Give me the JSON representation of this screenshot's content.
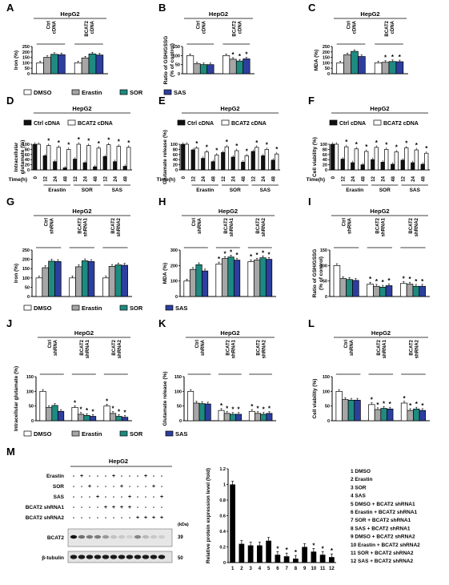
{
  "colors": {
    "dmso": "#ffffff",
    "erastin": "#a6a6a6",
    "sor": "#1e8a80",
    "sas": "#2d3f9e",
    "ctrl_cdna": "#111111",
    "bcat2_cdna": "#ffffff"
  },
  "legend_treatments": [
    "DMSO",
    "Erastin",
    "SOR",
    "SAS"
  ],
  "legend_cdna": [
    "Ctrl cDNA",
    "BCAT2 cDNA"
  ],
  "time_labels": [
    "0",
    "12",
    "24",
    "48",
    "12",
    "24",
    "48",
    "12",
    "24",
    "48"
  ],
  "time_axis_label": "Time(h)",
  "drug_group_labels": [
    "Erastin",
    "SOR",
    "SAS"
  ],
  "cell_line": "HepG2",
  "chart_data": [
    {
      "panel": "A",
      "type": "bar",
      "title": "HepG2",
      "ylabel": "Iron (%)",
      "ylim": [
        0,
        250
      ],
      "yticks": [
        0,
        50,
        100,
        150,
        200,
        250
      ],
      "groups": [
        "Ctrl cDNA",
        "BCAT2 cDNA"
      ],
      "series": [
        {
          "name": "DMSO",
          "values": [
            100,
            100
          ]
        },
        {
          "name": "Erastin",
          "values": [
            150,
            145
          ]
        },
        {
          "name": "SOR",
          "values": [
            178,
            182
          ]
        },
        {
          "name": "SAS",
          "values": [
            175,
            172
          ]
        }
      ]
    },
    {
      "panel": "B",
      "type": "bar",
      "title": "HepG2",
      "ylabel": "Ratio of GSH/GSSG (% of control)",
      "ylim": [
        0,
        150
      ],
      "yticks": [
        0,
        50,
        100,
        150
      ],
      "groups": [
        "Ctrl cDNA",
        "BCAT2 cDNA"
      ],
      "series": [
        {
          "name": "DMSO",
          "values": [
            100,
            100
          ]
        },
        {
          "name": "Erastin",
          "values": [
            55,
            80
          ]
        },
        {
          "name": "SOR",
          "values": [
            50,
            70
          ]
        },
        {
          "name": "SAS",
          "values": [
            50,
            82
          ]
        }
      ]
    },
    {
      "panel": "C",
      "type": "bar",
      "title": "HepG2",
      "ylabel": "MDA (%)",
      "ylim": [
        0,
        250
      ],
      "yticks": [
        0,
        50,
        100,
        150,
        200,
        250
      ],
      "groups": [
        "Ctrl cDNA",
        "BCAT2 cDNA"
      ],
      "series": [
        {
          "name": "DMSO",
          "values": [
            100,
            100
          ]
        },
        {
          "name": "Erastin",
          "values": [
            175,
            105
          ]
        },
        {
          "name": "SOR",
          "values": [
            205,
            112
          ]
        },
        {
          "name": "SAS",
          "values": [
            158,
            110
          ]
        }
      ]
    },
    {
      "panel": "D",
      "type": "bar",
      "title": "HepG2",
      "ylabel": "Intracellular glutamate (%)",
      "ylim": [
        0,
        100
      ],
      "yticks": [
        0,
        20,
        40,
        60,
        80,
        100
      ],
      "series": [
        {
          "name": "Ctrl cDNA",
          "values": [
            100,
            55,
            32,
            8,
            42,
            28,
            12,
            52,
            32,
            14
          ]
        },
        {
          "name": "BCAT2 cDNA",
          "values": [
            100,
            95,
            88,
            80,
            100,
            95,
            85,
            98,
            92,
            88
          ]
        }
      ]
    },
    {
      "panel": "E",
      "type": "bar",
      "title": "HepG2",
      "ylabel": "Glutamate release (%)",
      "ylim": [
        0,
        100
      ],
      "yticks": [
        0,
        20,
        40,
        60,
        80,
        100
      ],
      "series": [
        {
          "name": "Ctrl cDNA",
          "values": [
            100,
            78,
            45,
            32,
            68,
            50,
            30,
            72,
            55,
            38
          ]
        },
        {
          "name": "BCAT2 cDNA",
          "values": [
            100,
            85,
            70,
            58,
            90,
            75,
            55,
            88,
            80,
            62
          ]
        }
      ]
    },
    {
      "panel": "F",
      "type": "bar",
      "title": "HepG2",
      "ylabel": "Cell viability (%)",
      "ylim": [
        0,
        100
      ],
      "yticks": [
        0,
        20,
        40,
        60,
        80,
        100
      ],
      "series": [
        {
          "name": "Ctrl cDNA",
          "values": [
            100,
            42,
            28,
            20,
            40,
            30,
            22,
            38,
            28,
            22
          ]
        },
        {
          "name": "BCAT2 cDNA",
          "values": [
            100,
            90,
            82,
            72,
            88,
            80,
            70,
            86,
            78,
            65
          ]
        }
      ]
    },
    {
      "panel": "G",
      "type": "bar",
      "title": "HepG2",
      "ylabel": "Iron (%)",
      "ylim": [
        0,
        250
      ],
      "yticks": [
        0,
        50,
        100,
        150,
        200,
        250
      ],
      "groups": [
        "Ctrl shRNA",
        "BCAT2 shRNA1",
        "BCAT2 shRNA2"
      ],
      "series": [
        {
          "name": "DMSO",
          "values": [
            100,
            100,
            100
          ]
        },
        {
          "name": "Erastin",
          "values": [
            155,
            160,
            162
          ]
        },
        {
          "name": "SOR",
          "values": [
            190,
            192,
            170
          ]
        },
        {
          "name": "SAS",
          "values": [
            188,
            188,
            168
          ]
        }
      ]
    },
    {
      "panel": "H",
      "type": "bar",
      "title": "HepG2",
      "ylabel": "MDA (%)",
      "ylim": [
        0,
        300
      ],
      "yticks": [
        0,
        100,
        200,
        300
      ],
      "groups": [
        "Ctrl shRNA",
        "BCAT2 shRNA1",
        "BCAT2 shRNA2"
      ],
      "series": [
        {
          "name": "DMSO",
          "values": [
            100,
            210,
            225
          ]
        },
        {
          "name": "Erastin",
          "values": [
            175,
            245,
            235
          ]
        },
        {
          "name": "SOR",
          "values": [
            205,
            255,
            250
          ]
        },
        {
          "name": "SAS",
          "values": [
            165,
            235,
            240
          ]
        }
      ]
    },
    {
      "panel": "I",
      "type": "bar",
      "title": "HepG2",
      "ylabel": "Ratio of GSH/GSSG (% of control)",
      "ylim": [
        0,
        150
      ],
      "yticks": [
        0,
        50,
        100,
        150
      ],
      "groups": [
        "Ctrl shRNA",
        "BCAT2 shRNA1",
        "BCAT2 shRNA2"
      ],
      "series": [
        {
          "name": "DMSO",
          "values": [
            100,
            40,
            42
          ]
        },
        {
          "name": "Erastin",
          "values": [
            58,
            33,
            40
          ]
        },
        {
          "name": "SOR",
          "values": [
            55,
            30,
            33
          ]
        },
        {
          "name": "SAS",
          "values": [
            52,
            35,
            33
          ]
        }
      ]
    },
    {
      "panel": "J",
      "type": "bar",
      "title": "HepG2",
      "ylabel": "Intracellular glutamate (%)",
      "ylim": [
        0,
        150
      ],
      "yticks": [
        0,
        50,
        100,
        150
      ],
      "groups": [
        "Ctrl shRNA",
        "BCAT2 shRNA1",
        "BCAT2 shRNA2"
      ],
      "series": [
        {
          "name": "DMSO",
          "values": [
            100,
            45,
            50
          ]
        },
        {
          "name": "Erastin",
          "values": [
            45,
            22,
            25
          ]
        },
        {
          "name": "SOR",
          "values": [
            52,
            18,
            15
          ]
        },
        {
          "name": "SAS",
          "values": [
            32,
            15,
            12
          ]
        }
      ]
    },
    {
      "panel": "K",
      "type": "bar",
      "title": "HepG2",
      "ylabel": "Glutamate release (%)",
      "ylim": [
        0,
        150
      ],
      "yticks": [
        0,
        50,
        100,
        150
      ],
      "groups": [
        "Ctrl shRNA",
        "BCAT2 shRNA1",
        "BCAT2 shRNA2"
      ],
      "series": [
        {
          "name": "DMSO",
          "values": [
            100,
            35,
            32
          ]
        },
        {
          "name": "Erastin",
          "values": [
            60,
            25,
            25
          ]
        },
        {
          "name": "SOR",
          "values": [
            58,
            22,
            22
          ]
        },
        {
          "name": "SAS",
          "values": [
            57,
            22,
            25
          ]
        }
      ]
    },
    {
      "panel": "L",
      "type": "bar",
      "title": "HepG2",
      "ylabel": "Cell viability (%)",
      "ylim": [
        0,
        150
      ],
      "yticks": [
        0,
        50,
        100,
        150
      ],
      "groups": [
        "Ctrl shRNA",
        "BCAT2 shRNA1",
        "BCAT2 shRNA2"
      ],
      "series": [
        {
          "name": "DMSO",
          "values": [
            100,
            55,
            60
          ]
        },
        {
          "name": "Erastin",
          "values": [
            72,
            38,
            35
          ]
        },
        {
          "name": "SOR",
          "values": [
            70,
            42,
            40
          ]
        },
        {
          "name": "SAS",
          "values": [
            70,
            40,
            35
          ]
        }
      ]
    },
    {
      "panel": "M",
      "type": "bar",
      "title": "",
      "ylabel": "Relative protein expression level (fold)",
      "ylim": [
        0,
        1.2
      ],
      "yticks": [
        0,
        0.2,
        0.4,
        0.6,
        0.8,
        1.0,
        1.2
      ],
      "categories": [
        "1",
        "2",
        "3",
        "4",
        "5",
        "6",
        "7",
        "8",
        "9",
        "10",
        "11",
        "12"
      ],
      "values": [
        1.0,
        0.24,
        0.22,
        0.22,
        0.28,
        0.1,
        0.08,
        0.05,
        0.2,
        0.14,
        0.1,
        0.07
      ]
    }
  ],
  "panel_m": {
    "cell_line": "HepG2",
    "row_labels": [
      "Erastin",
      "SOR",
      "SAS",
      "BCAT2 shRNA1",
      "BCAT2 shRNA2"
    ],
    "row_marks": [
      [
        "-",
        "+",
        "-",
        "-",
        "-",
        "+",
        "-",
        "-",
        "-",
        "+",
        "-",
        "-"
      ],
      [
        "-",
        "-",
        "+",
        "-",
        "-",
        "-",
        "+",
        "-",
        "-",
        "-",
        "+",
        "-"
      ],
      [
        "-",
        "-",
        "-",
        "+",
        "-",
        "-",
        "-",
        "+",
        "-",
        "-",
        "-",
        "+"
      ],
      [
        "-",
        "-",
        "-",
        "-",
        "+",
        "+",
        "+",
        "+",
        "-",
        "-",
        "-",
        "-"
      ],
      [
        "-",
        "-",
        "-",
        "-",
        "-",
        "-",
        "-",
        "-",
        "+",
        "+",
        "+",
        "+"
      ]
    ],
    "blot_labels": [
      "BCAT2",
      "β-tubulin"
    ],
    "kda_label": "(kDa)",
    "kda_values": [
      "39",
      "50"
    ],
    "band_intensity": [
      1.0,
      0.55,
      0.5,
      0.5,
      0.35,
      0.15,
      0.12,
      0.08,
      0.45,
      0.2,
      0.12,
      0.1
    ],
    "legend": [
      "1  DMSO",
      "2  Erastin",
      "3  SOR",
      "4  SAS",
      "5  DMSO + BCAT2 shRNA1",
      "6  Erastin + BCAT2 shRNA1",
      "7  SOR + BCAT2 shRNA1",
      "8  SAS + BCAT2 shRNA1",
      "9  DMSO + BCAT2 shRNA2",
      "10  Erastin + BCAT2 shRNA2",
      "11  SOR + BCAT2 shRNA2",
      "12  SAS + BCAT2 shRNA2"
    ]
  }
}
